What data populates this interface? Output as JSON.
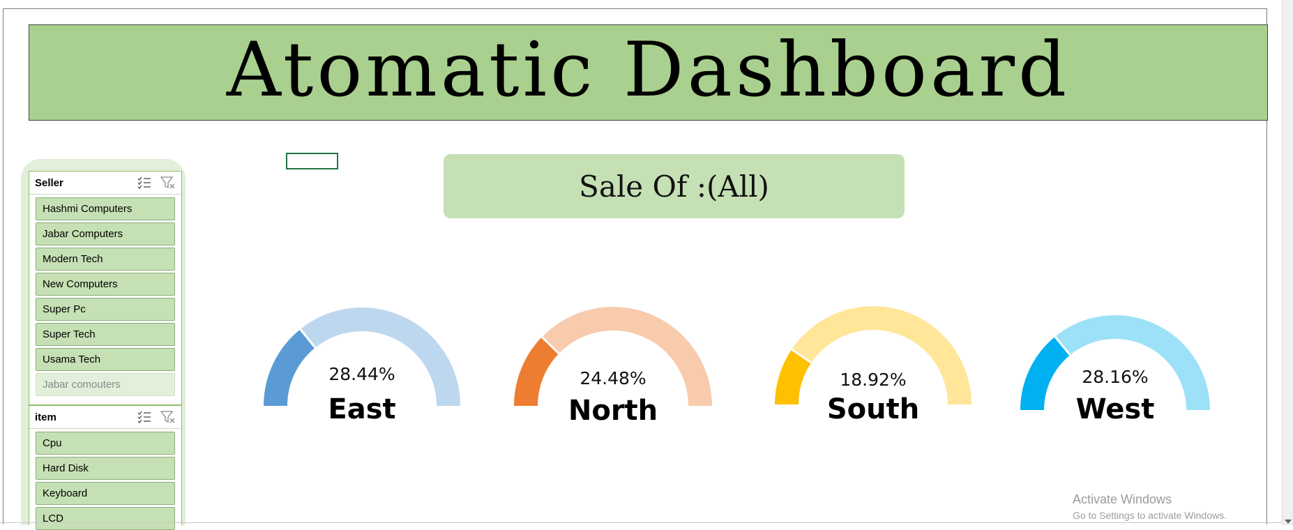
{
  "header": {
    "title": "Atomatic Dashboard"
  },
  "sale_label": "Sale Of :(All)",
  "slicers": [
    {
      "title": "Seller",
      "items": [
        {
          "label": "Hashmi Computers",
          "selected": true
        },
        {
          "label": "Jabar Computers",
          "selected": true
        },
        {
          "label": "Modern Tech",
          "selected": true
        },
        {
          "label": "New Computers",
          "selected": true
        },
        {
          "label": "Super Pc",
          "selected": true
        },
        {
          "label": "Super Tech",
          "selected": true
        },
        {
          "label": "Usama Tech",
          "selected": true
        },
        {
          "label": "Jabar comouters",
          "selected": false
        }
      ]
    },
    {
      "title": "item",
      "items": [
        {
          "label": "Cpu",
          "selected": true
        },
        {
          "label": "Hard Disk",
          "selected": true
        },
        {
          "label": "Keyboard",
          "selected": true
        },
        {
          "label": "LCD",
          "selected": true
        }
      ]
    }
  ],
  "gauges": [
    {
      "region": "East",
      "percent": "28.44%",
      "value": 0.2844,
      "color": "#5b9bd5",
      "track": "#bdd7ee"
    },
    {
      "region": "North",
      "percent": "24.48%",
      "value": 0.2448,
      "color": "#ed7d31",
      "track": "#f8cbad"
    },
    {
      "region": "South",
      "percent": "18.92%",
      "value": 0.1892,
      "color": "#ffc000",
      "track": "#ffe699"
    },
    {
      "region": "West",
      "percent": "28.16%",
      "value": 0.2816,
      "color": "#00b0f0",
      "track": "#9de1f9"
    }
  ],
  "watermark": {
    "line1": "Activate Windows",
    "line2": "Go to Settings to activate Windows."
  },
  "icons": {
    "multi_select": "multi-select-icon",
    "clear_filter": "clear-filter-icon"
  }
}
